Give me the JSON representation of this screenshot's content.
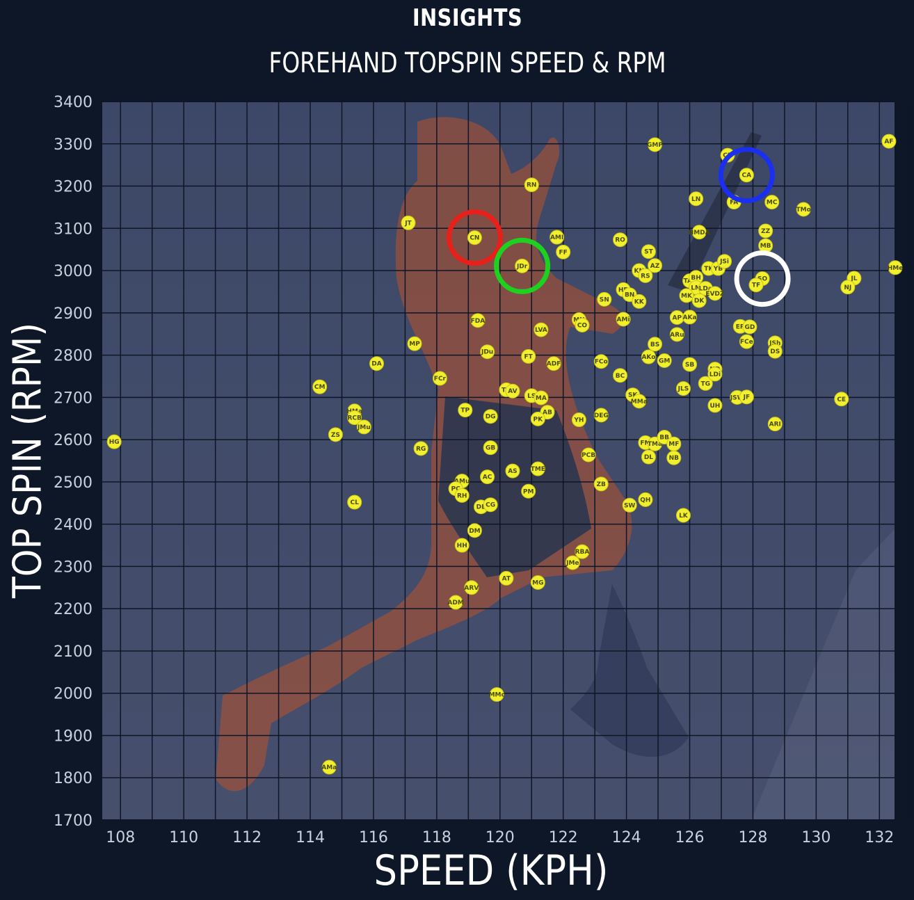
{
  "chart_data": {
    "type": "scatter",
    "title": "INSIGHTS",
    "subtitle": "FOREHAND TOPSPIN SPEED & RPM",
    "xlabel": "SPEED (KPH)",
    "ylabel": "TOP SPIN (RPM)",
    "xlim": [
      107.4,
      132.5
    ],
    "ylim": [
      1700,
      3400
    ],
    "xticks": [
      108,
      110,
      112,
      114,
      116,
      118,
      120,
      122,
      124,
      126,
      128,
      130,
      132
    ],
    "yticks": [
      1700,
      1800,
      1900,
      2000,
      2100,
      2200,
      2300,
      2400,
      2500,
      2600,
      2700,
      2800,
      2900,
      3000,
      3100,
      3200,
      3300,
      3400
    ],
    "grid": true,
    "dot_color": "#f2ef2e",
    "background_color": "#0d1728",
    "plot_color": "#3b4766",
    "points": [
      {
        "label": "HG",
        "x": 107.8,
        "y": 2595
      },
      {
        "label": "AMa",
        "x": 114.6,
        "y": 1825
      },
      {
        "label": "CM",
        "x": 114.3,
        "y": 2725
      },
      {
        "label": "ZS",
        "x": 114.8,
        "y": 2612
      },
      {
        "label": "HMa",
        "x": 115.4,
        "y": 2668
      },
      {
        "label": "RCB",
        "x": 115.4,
        "y": 2652
      },
      {
        "label": "JMu",
        "x": 115.7,
        "y": 2630
      },
      {
        "label": "CL",
        "x": 115.4,
        "y": 2452
      },
      {
        "label": "DA",
        "x": 116.1,
        "y": 2780
      },
      {
        "label": "JT",
        "x": 117.1,
        "y": 3113
      },
      {
        "label": "MP",
        "x": 117.3,
        "y": 2827
      },
      {
        "label": "RG",
        "x": 117.5,
        "y": 2579
      },
      {
        "label": "FCr",
        "x": 118.1,
        "y": 2745
      },
      {
        "label": "CN",
        "x": 119.2,
        "y": 3078
      },
      {
        "label": "JDr",
        "x": 120.7,
        "y": 3011
      },
      {
        "label": "FDA",
        "x": 119.3,
        "y": 2882
      },
      {
        "label": "JDu",
        "x": 119.6,
        "y": 2808
      },
      {
        "label": "TP",
        "x": 118.9,
        "y": 2670
      },
      {
        "label": "DG",
        "x": 119.7,
        "y": 2655
      },
      {
        "label": "GB",
        "x": 119.7,
        "y": 2581
      },
      {
        "label": "AMu",
        "x": 118.8,
        "y": 2502
      },
      {
        "label": "PC",
        "x": 118.6,
        "y": 2484
      },
      {
        "label": "RH",
        "x": 118.8,
        "y": 2468
      },
      {
        "label": "AC",
        "x": 119.6,
        "y": 2512
      },
      {
        "label": "DE",
        "x": 119.4,
        "y": 2441
      },
      {
        "label": "CG",
        "x": 119.7,
        "y": 2446
      },
      {
        "label": "DM",
        "x": 119.2,
        "y": 2385
      },
      {
        "label": "HH",
        "x": 118.8,
        "y": 2350
      },
      {
        "label": "ARV",
        "x": 119.1,
        "y": 2250
      },
      {
        "label": "ADM",
        "x": 118.6,
        "y": 2215
      },
      {
        "label": "AT",
        "x": 120.2,
        "y": 2272
      },
      {
        "label": "MMc",
        "x": 119.9,
        "y": 1997
      },
      {
        "label": "TD",
        "x": 120.2,
        "y": 2718
      },
      {
        "label": "AV",
        "x": 120.4,
        "y": 2715
      },
      {
        "label": "AS",
        "x": 120.4,
        "y": 2526
      },
      {
        "label": "PM",
        "x": 120.9,
        "y": 2478
      },
      {
        "label": "TME",
        "x": 121.2,
        "y": 2531
      },
      {
        "label": "MG",
        "x": 121.2,
        "y": 2262
      },
      {
        "label": "RN",
        "x": 121.0,
        "y": 3203
      },
      {
        "label": "FT",
        "x": 120.9,
        "y": 2797
      },
      {
        "label": "LVA",
        "x": 121.3,
        "y": 2860
      },
      {
        "label": "LS",
        "x": 121.0,
        "y": 2704
      },
      {
        "label": "MA",
        "x": 121.3,
        "y": 2699
      },
      {
        "label": "AB",
        "x": 121.5,
        "y": 2665
      },
      {
        "label": "PK",
        "x": 121.2,
        "y": 2649
      },
      {
        "label": "ADF",
        "x": 121.7,
        "y": 2780
      },
      {
        "label": "AMI",
        "x": 121.8,
        "y": 3079
      },
      {
        "label": "FF",
        "x": 122.0,
        "y": 3044
      },
      {
        "label": "MN",
        "x": 122.5,
        "y": 2884
      },
      {
        "label": "CO",
        "x": 122.6,
        "y": 2871
      },
      {
        "label": "YH",
        "x": 122.5,
        "y": 2647
      },
      {
        "label": "PCB",
        "x": 122.8,
        "y": 2564
      },
      {
        "label": "JMe",
        "x": 122.3,
        "y": 2309
      },
      {
        "label": "RBA",
        "x": 122.6,
        "y": 2335
      },
      {
        "label": "FCo",
        "x": 123.2,
        "y": 2785
      },
      {
        "label": "DEG",
        "x": 123.2,
        "y": 2658
      },
      {
        "label": "ZB",
        "x": 123.2,
        "y": 2495
      },
      {
        "label": "SN",
        "x": 123.3,
        "y": 2932
      },
      {
        "label": "AMi",
        "x": 123.9,
        "y": 2885
      },
      {
        "label": "BC",
        "x": 123.8,
        "y": 2752
      },
      {
        "label": "RO",
        "x": 123.8,
        "y": 3073
      },
      {
        "label": "HR",
        "x": 123.9,
        "y": 2955
      },
      {
        "label": "BN",
        "x": 124.1,
        "y": 2943
      },
      {
        "label": "KK",
        "x": 124.4,
        "y": 2927
      },
      {
        "label": "SW",
        "x": 124.1,
        "y": 2445
      },
      {
        "label": "SK",
        "x": 124.2,
        "y": 2706
      },
      {
        "label": "MMa",
        "x": 124.4,
        "y": 2691
      },
      {
        "label": "QH",
        "x": 124.6,
        "y": 2458
      },
      {
        "label": "ST",
        "x": 124.7,
        "y": 3045
      },
      {
        "label": "AZ",
        "x": 124.9,
        "y": 3012
      },
      {
        "label": "KN",
        "x": 124.4,
        "y": 3000
      },
      {
        "label": "RS",
        "x": 124.6,
        "y": 2988
      },
      {
        "label": "GMP",
        "x": 124.9,
        "y": 3298
      },
      {
        "label": "BS",
        "x": 124.9,
        "y": 2826
      },
      {
        "label": "AKo",
        "x": 124.7,
        "y": 2796
      },
      {
        "label": "GM",
        "x": 125.2,
        "y": 2787
      },
      {
        "label": "FM",
        "x": 124.6,
        "y": 2593
      },
      {
        "label": "TMa",
        "x": 124.9,
        "y": 2590
      },
      {
        "label": "BB",
        "x": 125.2,
        "y": 2606
      },
      {
        "label": "MF",
        "x": 125.5,
        "y": 2590
      },
      {
        "label": "DL",
        "x": 124.7,
        "y": 2559
      },
      {
        "label": "NB",
        "x": 125.5,
        "y": 2557
      },
      {
        "label": "AP",
        "x": 125.6,
        "y": 2889
      },
      {
        "label": "AKa",
        "x": 126.0,
        "y": 2890
      },
      {
        "label": "ARu",
        "x": 125.6,
        "y": 2849
      },
      {
        "label": "SB",
        "x": 126.0,
        "y": 2778
      },
      {
        "label": "JLS",
        "x": 125.8,
        "y": 2721
      },
      {
        "label": "LK",
        "x": 125.8,
        "y": 2421
      },
      {
        "label": "LN",
        "x": 126.2,
        "y": 3170
      },
      {
        "label": "NMDA",
        "x": 126.3,
        "y": 3091
      },
      {
        "label": "TAT",
        "x": 126.0,
        "y": 2976
      },
      {
        "label": "BH",
        "x": 126.2,
        "y": 2984
      },
      {
        "label": "LM",
        "x": 126.2,
        "y": 2960
      },
      {
        "label": "LDa",
        "x": 126.5,
        "y": 2958
      },
      {
        "label": "MK",
        "x": 125.9,
        "y": 2941
      },
      {
        "label": "DK",
        "x": 126.3,
        "y": 2929
      },
      {
        "label": "EVDZ",
        "x": 126.8,
        "y": 2946
      },
      {
        "label": "TK",
        "x": 126.6,
        "y": 3005
      },
      {
        "label": "YB",
        "x": 126.9,
        "y": 3005
      },
      {
        "label": "JSi",
        "x": 127.1,
        "y": 3022
      },
      {
        "label": "TG",
        "x": 126.5,
        "y": 2733
      },
      {
        "label": "ND",
        "x": 126.8,
        "y": 2767
      },
      {
        "label": "LDi",
        "x": 126.8,
        "y": 2755
      },
      {
        "label": "UH",
        "x": 126.8,
        "y": 2681
      },
      {
        "label": "JSW",
        "x": 127.5,
        "y": 2700
      },
      {
        "label": "JF",
        "x": 127.8,
        "y": 2701
      },
      {
        "label": "CR",
        "x": 127.2,
        "y": 3273
      },
      {
        "label": "CA",
        "x": 127.8,
        "y": 3226
      },
      {
        "label": "FA",
        "x": 127.4,
        "y": 3162
      },
      {
        "label": "MC",
        "x": 128.6,
        "y": 3162
      },
      {
        "label": "TMo",
        "x": 129.6,
        "y": 3145
      },
      {
        "label": "ZZ",
        "x": 128.4,
        "y": 3094
      },
      {
        "label": "MB",
        "x": 128.4,
        "y": 3059
      },
      {
        "label": "SO",
        "x": 128.3,
        "y": 2981
      },
      {
        "label": "TF",
        "x": 128.1,
        "y": 2966
      },
      {
        "label": "ER",
        "x": 127.6,
        "y": 2868
      },
      {
        "label": "GD",
        "x": 127.9,
        "y": 2867
      },
      {
        "label": "FCe",
        "x": 127.8,
        "y": 2832
      },
      {
        "label": "JSh",
        "x": 128.7,
        "y": 2829
      },
      {
        "label": "DS",
        "x": 128.7,
        "y": 2809
      },
      {
        "label": "ARI",
        "x": 128.7,
        "y": 2637
      },
      {
        "label": "CE",
        "x": 130.8,
        "y": 2696
      },
      {
        "label": "JL",
        "x": 131.2,
        "y": 2982
      },
      {
        "label": "NJ",
        "x": 131.0,
        "y": 2961
      },
      {
        "label": "AF",
        "x": 132.3,
        "y": 3306
      },
      {
        "label": "HMe",
        "x": 132.5,
        "y": 3007
      }
    ],
    "highlights": [
      {
        "target": "CN",
        "color": "#e8201a"
      },
      {
        "target": "JDr",
        "color": "#1fd11f"
      },
      {
        "target": "CA",
        "color": "#1a2ff0"
      },
      {
        "target": "SO",
        "color": "#ffffff"
      }
    ]
  }
}
